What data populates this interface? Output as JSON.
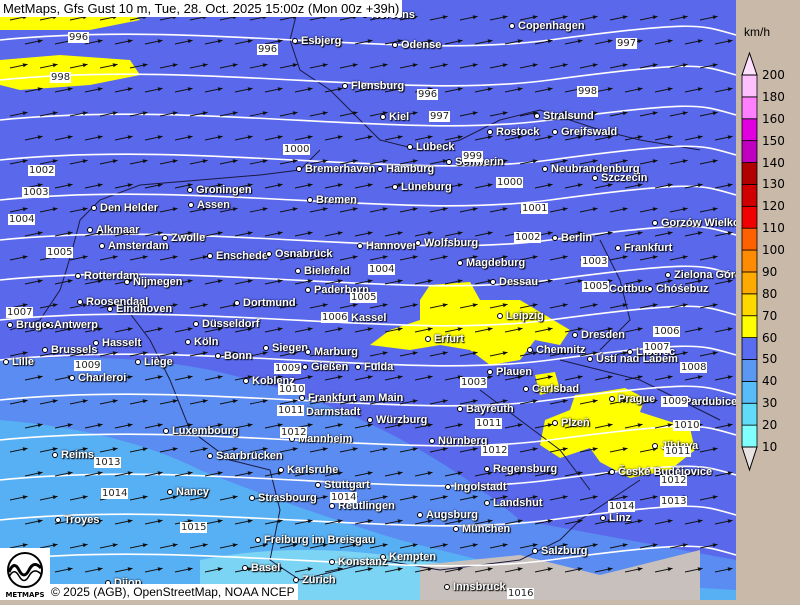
{
  "title": "MetMaps, Gfs Gust 10 m, Tue, 28. Oct. 2025 15:00z (Mon 00z +39h)",
  "credit": "© 2025 (AGB), OpenStreetMap, NOAA NCEP",
  "logo_text": "METMAPS",
  "legend": {
    "unit": "km/h",
    "bins": [
      {
        "label": "10",
        "color": "#80ffff"
      },
      {
        "label": "20",
        "color": "#60dcf8"
      },
      {
        "label": "30",
        "color": "#58bcf8"
      },
      {
        "label": "40",
        "color": "#5a98f4"
      },
      {
        "label": "50",
        "color": "#5a6cf0"
      },
      {
        "label": "60",
        "color": "#ffff00"
      },
      {
        "label": "70",
        "color": "#ffd800"
      },
      {
        "label": "80",
        "color": "#ffaa00"
      },
      {
        "label": "90",
        "color": "#ff8c00"
      },
      {
        "label": "100",
        "color": "#ff6000"
      },
      {
        "label": "110",
        "color": "#f00000"
      },
      {
        "label": "120",
        "color": "#d00000"
      },
      {
        "label": "130",
        "color": "#b00000"
      },
      {
        "label": "140",
        "color": "#c000c0"
      },
      {
        "label": "150",
        "color": "#e000e0"
      },
      {
        "label": "160",
        "color": "#ff80ff"
      },
      {
        "label": "180",
        "color": "#ffc0ff"
      },
      {
        "label": "200",
        "color": "#ffe0ff"
      }
    ]
  },
  "cities": [
    "Horsens",
    "Esbjerg",
    "Odense",
    "Copenhagen",
    "Flensburg",
    "Kiel",
    "Stralsund",
    "Rostock",
    "Greifswald",
    "Lübeck",
    "Schwerin",
    "Neubrandenburg",
    "Szczecin",
    "Bremerhaven",
    "Hamburg",
    "Groningen",
    "Assen",
    "Lüneburg",
    "Bremen",
    "Den Helder",
    "Gorzów Wielkopolski",
    "Alkmaar",
    "Zwolle",
    "Amsterdam",
    "Hannover",
    "Wolfsburg",
    "Berlin",
    "Frankfurt",
    "Enschede",
    "Osnabrück",
    "Rotterdam",
    "Nijmegen",
    "Bielefeld",
    "Magdeburg",
    "Zielona Góra",
    "Dessau",
    "Cottbus",
    "Chóśebuz",
    "Paderborn",
    "Roosendaal",
    "Eindhoven",
    "Dortmund",
    "Bruges",
    "Antwerp",
    "Düsseldorf",
    "Kassel",
    "Leipzig",
    "Erfurt",
    "Dresden",
    "Hasselt",
    "Köln",
    "Brussels",
    "Bonn",
    "Siegen",
    "Marburg",
    "Chemnitz",
    "Ústí nad Labem",
    "Liberec",
    "Lille",
    "Liège",
    "Gießen",
    "Fulda",
    "Plauen",
    "Charleroi",
    "Koblenz",
    "Carlsbad",
    "Frankfurt am Main",
    "Prague",
    "Pardubice",
    "Darmstadt",
    "Bayreuth",
    "Würzburg",
    "Plzeň",
    "Luxembourg",
    "Mannheim",
    "Nürnberg",
    "Jihlava",
    "Reims",
    "Saarbrücken",
    "Regensburg",
    "České Budějovice",
    "Karlsruhe",
    "Stuttgart",
    "Ingolstadt",
    "Nancy",
    "Strasbourg",
    "Landshut",
    "Reutlingen",
    "Troyes",
    "Augsburg",
    "Linz",
    "München",
    "Freiburg im Breisgau",
    "Salzburg",
    "Kempten",
    "Konstanz",
    "Basel",
    "Zürich",
    "Dijon",
    "Innsbruck"
  ],
  "isobars": [
    "996",
    "996",
    "997",
    "998",
    "998",
    "996",
    "997",
    "1000",
    "999",
    "1000",
    "1001",
    "1002",
    "1003",
    "1004",
    "1002",
    "1005",
    "1003",
    "1004",
    "1005",
    "1005",
    "1006",
    "1007",
    "1006",
    "1007",
    "1008",
    "1009",
    "1009",
    "1003",
    "1009",
    "1010",
    "1011",
    "1011",
    "1010",
    "1012",
    "1012",
    "1011",
    "1013",
    "1014",
    "1014",
    "1012",
    "1013",
    "1014",
    "1015",
    "1016"
  ]
}
